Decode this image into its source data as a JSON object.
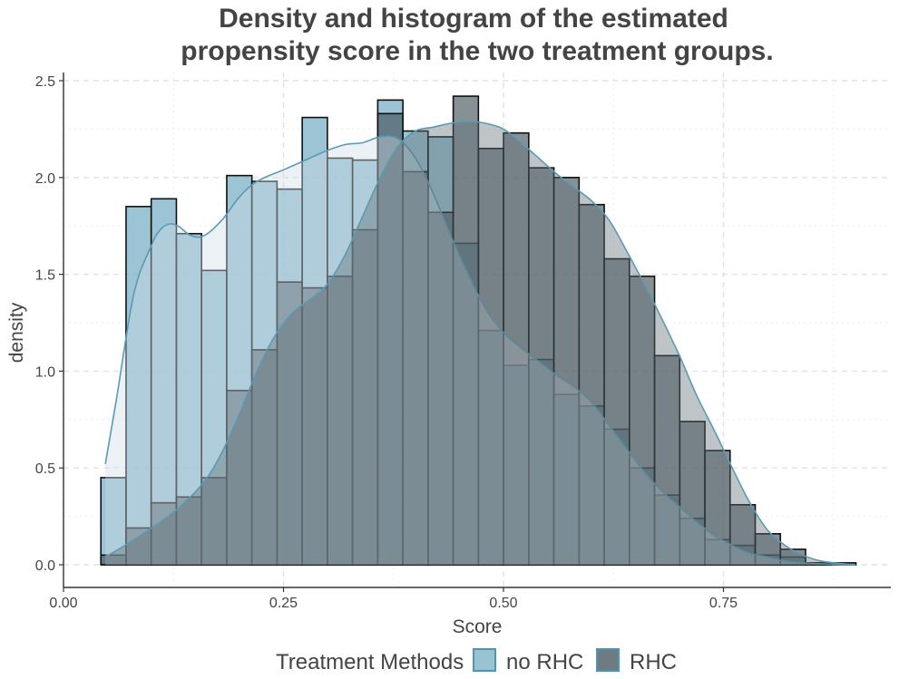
{
  "chart_data": {
    "type": "histogram+density",
    "title_line1": "Density and histogram of the estimated",
    "title_line2": "propensity score in the two treatment groups.",
    "xlabel": "Score",
    "ylabel": "density",
    "xlim": [
      0.0,
      0.94
    ],
    "ylim": [
      -0.12,
      2.55
    ],
    "x_ticks": [
      0.0,
      0.25,
      0.5,
      0.75
    ],
    "x_tick_labels": [
      "0.00",
      "0.25",
      "0.50",
      "0.75"
    ],
    "y_ticks": [
      0.0,
      0.5,
      1.0,
      1.5,
      2.0,
      2.5
    ],
    "y_tick_labels": [
      "0.0",
      "0.5",
      "1.0",
      "1.5",
      "2.0",
      "2.5"
    ],
    "grid": "dashed",
    "legend": {
      "title": "Treatment Methods",
      "position": "bottom",
      "entries": [
        {
          "label": "no RHC",
          "color": "#7fb3c8"
        },
        {
          "label": "RHC",
          "color": "#4a5a61"
        }
      ]
    },
    "bin_edges": [
      0.0425,
      0.0711,
      0.0997,
      0.1283,
      0.1569,
      0.1855,
      0.2141,
      0.2427,
      0.2713,
      0.2999,
      0.3285,
      0.3571,
      0.3857,
      0.4143,
      0.4429,
      0.4715,
      0.5001,
      0.5287,
      0.5573,
      0.5859,
      0.6145,
      0.6431,
      0.6717,
      0.7003,
      0.7289,
      0.7575,
      0.7861,
      0.8147,
      0.8433,
      0.8719,
      0.9005
    ],
    "series": [
      {
        "name": "no RHC",
        "color": "#7fb3c8",
        "hist": [
          0.45,
          1.85,
          1.89,
          1.71,
          1.52,
          2.01,
          1.98,
          1.94,
          2.31,
          2.1,
          2.09,
          2.4,
          2.24,
          2.21,
          1.66,
          1.21,
          1.03,
          1.06,
          0.88,
          0.82,
          0.7,
          0.5,
          0.36,
          0.24,
          0.13,
          0.1,
          0.05,
          0.04,
          0.01,
          0.0
        ],
        "density_x": [
          0.0475,
          0.06,
          0.08,
          0.1,
          0.11,
          0.12,
          0.13,
          0.145,
          0.16,
          0.18,
          0.2,
          0.22,
          0.25,
          0.28,
          0.3,
          0.32,
          0.34,
          0.36,
          0.38,
          0.4,
          0.42,
          0.44,
          0.46,
          0.48,
          0.5,
          0.52,
          0.54,
          0.56,
          0.58,
          0.6,
          0.62,
          0.64,
          0.66,
          0.68,
          0.7,
          0.72,
          0.74,
          0.76,
          0.78,
          0.8,
          0.82,
          0.84,
          0.86,
          0.88,
          0.9
        ],
        "density_y": [
          0.52,
          0.85,
          1.4,
          1.65,
          1.73,
          1.76,
          1.75,
          1.7,
          1.7,
          1.78,
          1.9,
          1.98,
          2.04,
          2.1,
          2.14,
          2.17,
          2.18,
          2.21,
          2.2,
          2.1,
          1.92,
          1.7,
          1.5,
          1.32,
          1.2,
          1.12,
          1.05,
          0.98,
          0.92,
          0.84,
          0.72,
          0.6,
          0.48,
          0.38,
          0.3,
          0.22,
          0.15,
          0.1,
          0.06,
          0.04,
          0.02,
          0.01,
          0.005,
          0.002,
          0.0
        ]
      },
      {
        "name": "RHC",
        "color": "#4a5a61",
        "hist": [
          0.05,
          0.19,
          0.32,
          0.35,
          0.45,
          0.9,
          1.11,
          1.46,
          1.43,
          1.49,
          1.73,
          2.33,
          2.03,
          1.82,
          2.42,
          2.15,
          2.23,
          2.05,
          2.0,
          1.86,
          1.58,
          1.49,
          1.08,
          0.74,
          0.59,
          0.31,
          0.16,
          0.08,
          0.01,
          0.01
        ],
        "density_x": [
          0.0475,
          0.07,
          0.1,
          0.13,
          0.16,
          0.18,
          0.2,
          0.22,
          0.24,
          0.26,
          0.28,
          0.3,
          0.32,
          0.34,
          0.36,
          0.38,
          0.4,
          0.42,
          0.44,
          0.46,
          0.48,
          0.5,
          0.52,
          0.54,
          0.56,
          0.58,
          0.6,
          0.62,
          0.64,
          0.66,
          0.68,
          0.7,
          0.72,
          0.74,
          0.76,
          0.78,
          0.8,
          0.82,
          0.84,
          0.86,
          0.88,
          0.9
        ],
        "density_y": [
          0.04,
          0.1,
          0.19,
          0.29,
          0.43,
          0.58,
          0.78,
          1.0,
          1.18,
          1.3,
          1.37,
          1.45,
          1.6,
          1.8,
          2.0,
          2.16,
          2.24,
          2.26,
          2.28,
          2.29,
          2.28,
          2.25,
          2.18,
          2.1,
          2.02,
          1.95,
          1.88,
          1.78,
          1.62,
          1.45,
          1.27,
          1.08,
          0.87,
          0.69,
          0.5,
          0.32,
          0.18,
          0.1,
          0.05,
          0.02,
          0.008,
          0.0
        ]
      }
    ]
  }
}
